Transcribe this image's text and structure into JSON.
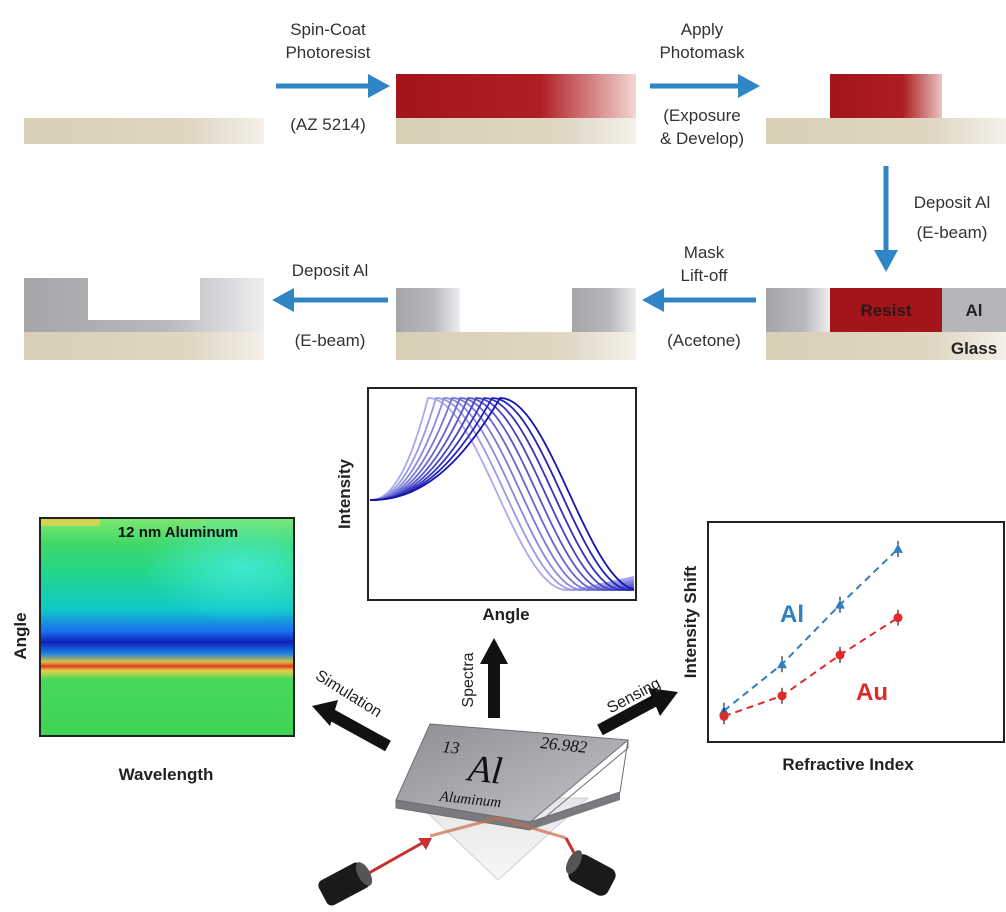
{
  "process": {
    "step1": {
      "line1": "Spin-Coat",
      "line2": "Photoresist",
      "note": "(AZ 5214)"
    },
    "step2": {
      "line1": "Apply",
      "line2": "Photomask",
      "note1": "(Exposure",
      "note2": "& Develop)"
    },
    "step3": {
      "line1": "Deposit Al",
      "line2": "(E-beam)"
    },
    "step4": {
      "line1": "Mask",
      "line2": "Lift-off",
      "note": "(Acetone)"
    },
    "step5": {
      "line1": "Deposit Al",
      "note": "(E-beam)"
    },
    "layer_labels": {
      "resist": "Resist",
      "al": "Al",
      "glass": "Glass"
    }
  },
  "panels": {
    "spectra_plot": {
      "ylabel": "Intensity",
      "xlabel": "Angle"
    },
    "simulation_map": {
      "title": "12 nm Aluminum",
      "ylabel": "Angle",
      "xlabel": "Wavelength"
    },
    "sensing_plot": {
      "ylabel": "Intensity Shift",
      "xlabel": "Refractive Index"
    }
  },
  "arrows": {
    "simulation": "Simulation",
    "spectra": "Spectra",
    "sensing": "Sensing"
  },
  "element_tile": {
    "atomic_number": "13",
    "atomic_mass": "26.982",
    "symbol": "Al",
    "name": "Aluminum"
  },
  "colors": {
    "arrow_blue": "#2f86c6",
    "resist_red": "#a3141b",
    "glass": "#ddd3bd",
    "al_grey": "#a8a9ad",
    "au_red": "#e02929",
    "al_blue": "#2f7fc1"
  },
  "chart_data": [
    {
      "type": "line",
      "xlabel": "Angle",
      "ylabel": "Intensity",
      "series_count": 10,
      "note": "Family of resonance curves progressively shifting to larger angle"
    },
    {
      "type": "scatter",
      "xlabel": "Refractive Index",
      "ylabel": "Intensity Shift",
      "series": [
        {
          "name": "Al",
          "x": [
            1,
            2,
            3,
            4
          ],
          "y": [
            0.05,
            0.3,
            0.62,
            0.92
          ]
        },
        {
          "name": "Au",
          "x": [
            1,
            2,
            3,
            4
          ],
          "y": [
            0.02,
            0.13,
            0.35,
            0.55
          ]
        }
      ]
    }
  ]
}
